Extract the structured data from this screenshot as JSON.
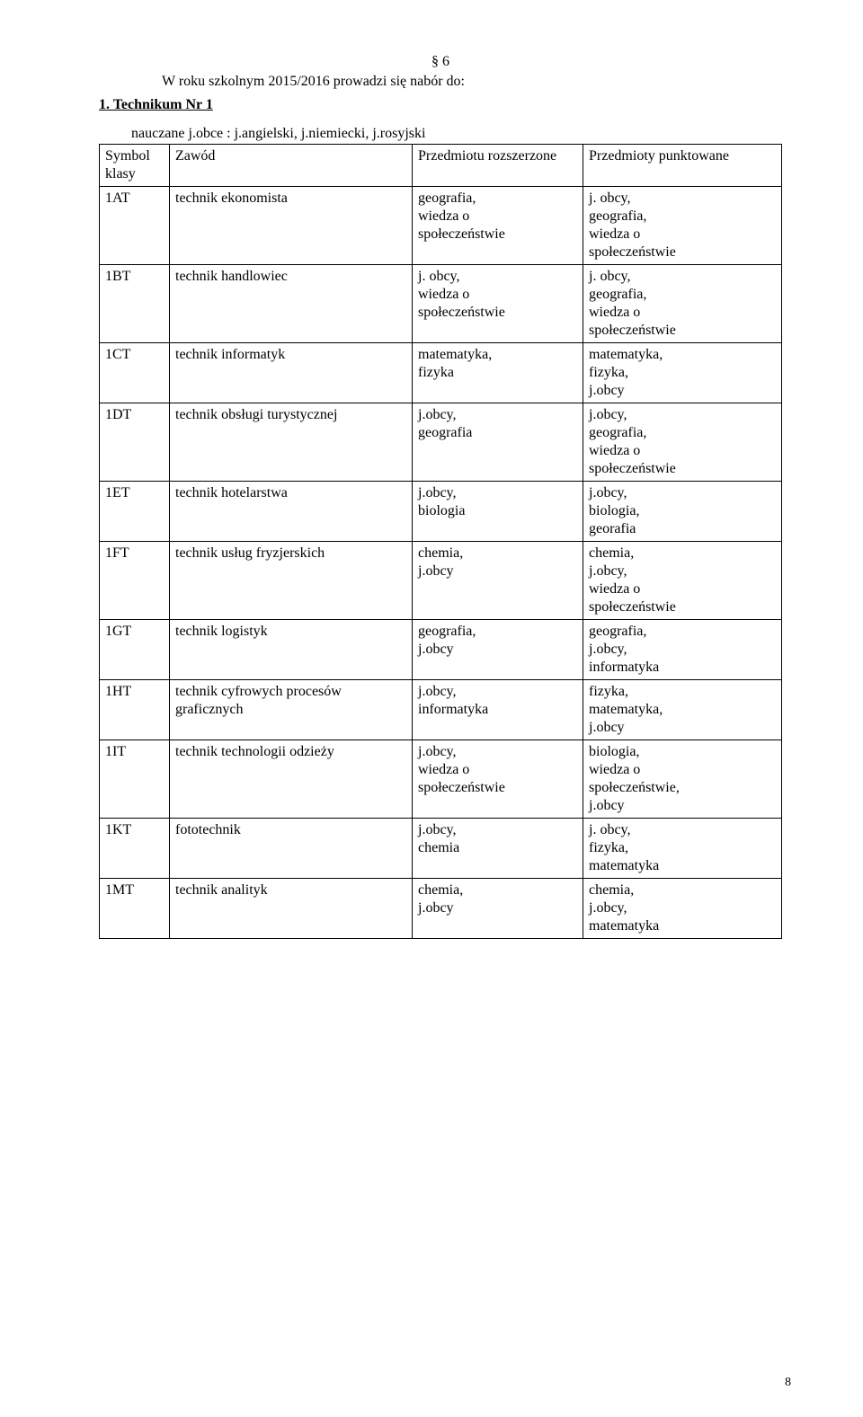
{
  "section_number": "§ 6",
  "intro_line": "W roku szkolnym 2015/2016 prowadzi się nabór do:",
  "heading": "1. Technikum Nr 1",
  "languages_line": "nauczane j.obce : j.angielski, j.niemiecki, j.rosyjski",
  "table": {
    "header": {
      "symbol": "Symbol klasy",
      "job": "Zawód",
      "ext": "Przedmiotu rozszerzone",
      "pts": "Przedmioty punktowane"
    },
    "rows": [
      {
        "symbol": "1AT",
        "job": "technik ekonomista",
        "ext": "geografia,\nwiedza o\nspołeczeństwie",
        "pts": "j. obcy,\ngeografia,\nwiedza o\nspołeczeństwie"
      },
      {
        "symbol": "1BT",
        "job": "technik handlowiec",
        "ext": "j. obcy,\nwiedza o\nspołeczeństwie",
        "pts": "j. obcy,\ngeografia,\nwiedza o\nspołeczeństwie"
      },
      {
        "symbol": "1CT",
        "job": "technik informatyk",
        "ext": "matematyka,\nfizyka",
        "pts": "matematyka,\nfizyka,\nj.obcy"
      },
      {
        "symbol": "1DT",
        "job": "technik obsługi turystycznej",
        "ext": "j.obcy,\ngeografia",
        "pts": "j.obcy,\ngeografia,\nwiedza o\nspołeczeństwie"
      },
      {
        "symbol": "1ET",
        "job": "technik hotelarstwa",
        "ext": "j.obcy,\nbiologia",
        "pts": "j.obcy,\nbiologia,\ngeorafia"
      },
      {
        "symbol": "1FT",
        "job": "technik usług fryzjerskich",
        "ext": "chemia,\nj.obcy",
        "pts": "chemia,\nj.obcy,\nwiedza o\nspołeczeństwie"
      },
      {
        "symbol": "1GT",
        "job": "technik logistyk",
        "ext": "geografia,\nj.obcy",
        "pts": "geografia,\n j.obcy,\ninformatyka"
      },
      {
        "symbol": "1HT",
        "job": "technik cyfrowych procesów graficznych",
        "ext": "j.obcy,\ninformatyka",
        "pts": "fizyka,\nmatematyka,\n j.obcy"
      },
      {
        "symbol": "1IT",
        "job": "technik technologii odzieży",
        "ext": "j.obcy,\nwiedza o\nspołeczeństwie",
        "pts": "biologia,\nwiedza o\nspołeczeństwie,\nj.obcy"
      },
      {
        "symbol": "1KT",
        "job": "fototechnik",
        "ext": "j.obcy,\nchemia",
        "pts": "j. obcy,\nfizyka,\nmatematyka"
      },
      {
        "symbol": "1MT",
        "job": "technik analityk",
        "ext": "chemia,\nj.obcy",
        "pts": "chemia,\nj.obcy,\nmatematyka"
      }
    ]
  },
  "page_number": "8",
  "colors": {
    "background": "#ffffff",
    "text": "#000000",
    "border": "#000000"
  },
  "fonts": {
    "family": "Times New Roman",
    "body_size_pt": 12,
    "heading_weight": "bold"
  }
}
